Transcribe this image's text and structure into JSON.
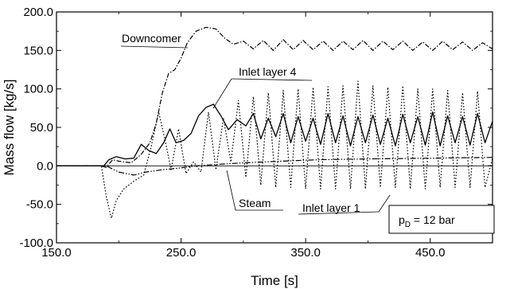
{
  "chart_data": {
    "type": "line",
    "xlabel": "Time [s]",
    "ylabel": "Mass flow [kg/s]",
    "xlim": [
      150,
      500
    ],
    "ylim": [
      -100,
      200
    ],
    "x_ticks": [
      {
        "value": 150,
        "label": "150.0"
      },
      {
        "value": 250,
        "label": "250.0"
      },
      {
        "value": 350,
        "label": "350.0"
      },
      {
        "value": 450,
        "label": "450.0"
      }
    ],
    "y_ticks": [
      {
        "value": -100,
        "label": "-100.0"
      },
      {
        "value": -50,
        "label": "-50.0"
      },
      {
        "value": 0,
        "label": "0.0"
      },
      {
        "value": 50,
        "label": "50.0"
      },
      {
        "value": 100,
        "label": "100.0"
      },
      {
        "value": 150,
        "label": "150.0"
      },
      {
        "value": 200,
        "label": "200.0"
      }
    ],
    "grid": false,
    "legend": "callout labels",
    "pressure_box": {
      "symbol": "p",
      "subscript": "D",
      "rest": " = 12 bar"
    },
    "series": [
      {
        "name": "Downcomer",
        "style": "dashdot",
        "points": [
          [
            150,
            0
          ],
          [
            185,
            0
          ],
          [
            190,
            -2
          ],
          [
            195,
            8
          ],
          [
            200,
            6
          ],
          [
            210,
            4
          ],
          [
            218,
            15
          ],
          [
            225,
            30
          ],
          [
            230,
            55
          ],
          [
            235,
            95
          ],
          [
            240,
            120
          ],
          [
            245,
            125
          ],
          [
            250,
            140
          ],
          [
            255,
            160
          ],
          [
            262,
            175
          ],
          [
            270,
            180
          ],
          [
            278,
            178
          ],
          [
            285,
            166
          ],
          [
            292,
            158
          ],
          [
            300,
            162
          ],
          [
            308,
            152
          ],
          [
            316,
            163
          ],
          [
            324,
            150
          ],
          [
            332,
            164
          ],
          [
            340,
            151
          ],
          [
            348,
            163
          ],
          [
            356,
            151
          ],
          [
            364,
            162
          ],
          [
            372,
            150
          ],
          [
            380,
            162
          ],
          [
            388,
            151
          ],
          [
            396,
            163
          ],
          [
            404,
            150
          ],
          [
            412,
            162
          ],
          [
            420,
            151
          ],
          [
            428,
            162
          ],
          [
            436,
            150
          ],
          [
            444,
            161
          ],
          [
            452,
            150
          ],
          [
            460,
            162
          ],
          [
            468,
            151
          ],
          [
            476,
            161
          ],
          [
            484,
            150
          ],
          [
            492,
            160
          ],
          [
            500,
            152
          ]
        ]
      },
      {
        "name": "Inlet layer 4",
        "style": "solid",
        "points": [
          [
            150,
            0
          ],
          [
            188,
            0
          ],
          [
            192,
            8
          ],
          [
            198,
            12
          ],
          [
            205,
            9
          ],
          [
            212,
            10
          ],
          [
            218,
            28
          ],
          [
            224,
            20
          ],
          [
            230,
            16
          ],
          [
            236,
            30
          ],
          [
            241,
            48
          ],
          [
            246,
            30
          ],
          [
            252,
            33
          ],
          [
            258,
            42
          ],
          [
            264,
            65
          ],
          [
            270,
            76
          ],
          [
            276,
            80
          ],
          [
            282,
            65
          ],
          [
            288,
            47
          ],
          [
            295,
            60
          ],
          [
            302,
            52
          ],
          [
            308,
            68
          ],
          [
            314,
            35
          ],
          [
            320,
            62
          ],
          [
            326,
            38
          ],
          [
            332,
            68
          ],
          [
            338,
            30
          ],
          [
            344,
            64
          ],
          [
            350,
            32
          ],
          [
            356,
            62
          ],
          [
            362,
            28
          ],
          [
            368,
            68
          ],
          [
            374,
            30
          ],
          [
            380,
            65
          ],
          [
            386,
            26
          ],
          [
            392,
            64
          ],
          [
            398,
            30
          ],
          [
            404,
            66
          ],
          [
            410,
            28
          ],
          [
            416,
            62
          ],
          [
            422,
            26
          ],
          [
            428,
            67
          ],
          [
            434,
            30
          ],
          [
            440,
            64
          ],
          [
            446,
            27
          ],
          [
            452,
            70
          ],
          [
            458,
            26
          ],
          [
            464,
            65
          ],
          [
            470,
            30
          ],
          [
            476,
            64
          ],
          [
            482,
            27
          ],
          [
            488,
            68
          ],
          [
            494,
            30
          ],
          [
            500,
            58
          ]
        ]
      },
      {
        "name": "Inlet layer 1",
        "style": "dotted",
        "points": [
          [
            150,
            0
          ],
          [
            186,
            0
          ],
          [
            190,
            -40
          ],
          [
            194,
            -68
          ],
          [
            198,
            -45
          ],
          [
            204,
            -30
          ],
          [
            212,
            -20
          ],
          [
            220,
            -12
          ],
          [
            226,
            25
          ],
          [
            232,
            70
          ],
          [
            237,
            35
          ],
          [
            242,
            -5
          ],
          [
            248,
            48
          ],
          [
            254,
            -10
          ],
          [
            260,
            5
          ],
          [
            266,
            -8
          ],
          [
            272,
            70
          ],
          [
            278,
            -5
          ],
          [
            284,
            62
          ],
          [
            290,
            5
          ],
          [
            296,
            85
          ],
          [
            302,
            -15
          ],
          [
            308,
            90
          ],
          [
            314,
            -25
          ],
          [
            320,
            95
          ],
          [
            326,
            -28
          ],
          [
            332,
            98
          ],
          [
            338,
            -28
          ],
          [
            344,
            100
          ],
          [
            350,
            -30
          ],
          [
            356,
            102
          ],
          [
            362,
            -30
          ],
          [
            368,
            103
          ],
          [
            374,
            -30
          ],
          [
            380,
            104
          ],
          [
            386,
            -30
          ],
          [
            392,
            110
          ],
          [
            398,
            -30
          ],
          [
            404,
            104
          ],
          [
            410,
            -28
          ],
          [
            416,
            102
          ],
          [
            422,
            -28
          ],
          [
            428,
            104
          ],
          [
            434,
            -30
          ],
          [
            440,
            100
          ],
          [
            446,
            -30
          ],
          [
            452,
            100
          ],
          [
            458,
            -28
          ],
          [
            464,
            98
          ],
          [
            470,
            -28
          ],
          [
            476,
            95
          ],
          [
            482,
            -28
          ],
          [
            488,
            97
          ],
          [
            494,
            -28
          ],
          [
            500,
            10
          ]
        ]
      },
      {
        "name": "Steam",
        "style": "dashdotdot",
        "points": [
          [
            150,
            0
          ],
          [
            190,
            0
          ],
          [
            200,
            -8
          ],
          [
            212,
            -12
          ],
          [
            222,
            -8
          ],
          [
            235,
            -5
          ],
          [
            248,
            -3
          ],
          [
            262,
            0
          ],
          [
            280,
            2
          ],
          [
            300,
            4
          ],
          [
            330,
            6
          ],
          [
            360,
            8
          ],
          [
            400,
            9
          ],
          [
            450,
            10
          ],
          [
            500,
            11
          ]
        ]
      }
    ]
  }
}
